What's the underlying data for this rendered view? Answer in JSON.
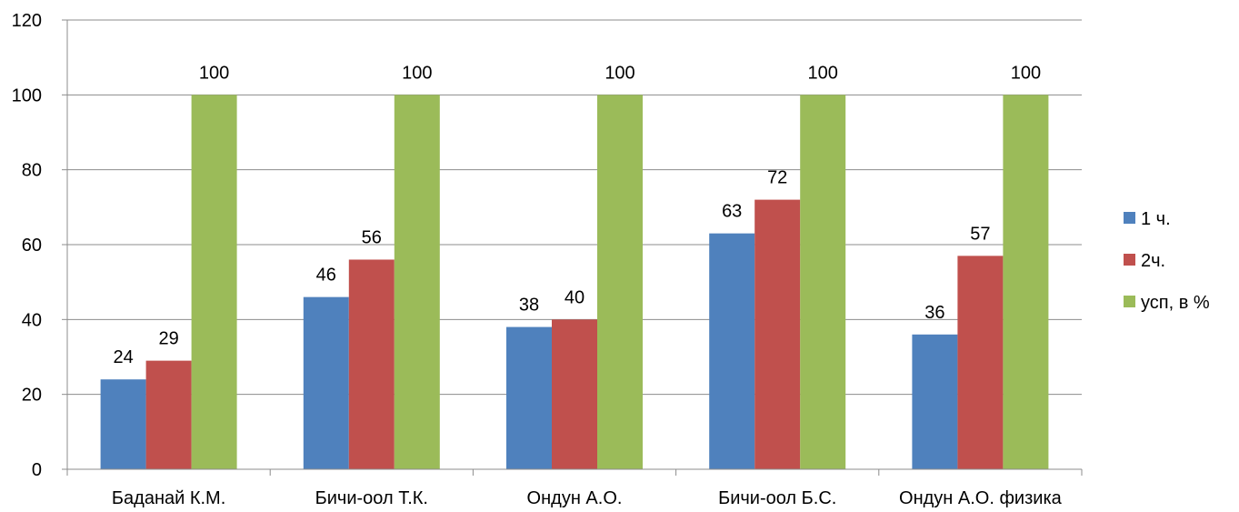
{
  "chart_data": {
    "type": "bar",
    "categories": [
      "Баданай К.М.",
      "Бичи-оол Т.К.",
      "Ондун А.О.",
      "Бичи-оол Б.С.",
      "Ондун А.О. физика"
    ],
    "series": [
      {
        "name": "1 ч.",
        "color": "#4f81bd",
        "values": [
          24,
          46,
          38,
          63,
          36
        ]
      },
      {
        "name": "2ч.",
        "color": "#c0504d",
        "values": [
          29,
          56,
          40,
          72,
          57
        ]
      },
      {
        "name": "усп, в %",
        "color": "#9bbb59",
        "values": [
          100,
          100,
          100,
          100,
          100
        ]
      }
    ],
    "ylim": [
      0,
      120
    ],
    "yticks": [
      0,
      20,
      40,
      60,
      80,
      100,
      120
    ],
    "grid": true,
    "legend": "right",
    "data_labels": true
  }
}
